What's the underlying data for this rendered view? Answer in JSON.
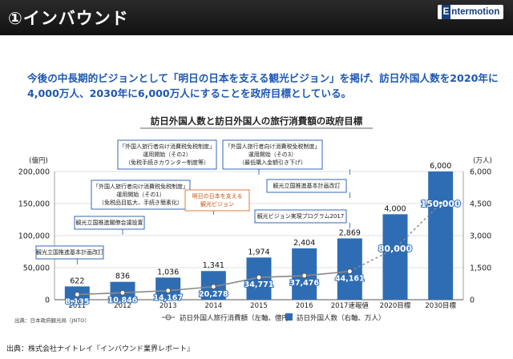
{
  "header": {
    "title": "①インバウンド",
    "logo_first": "E",
    "logo_rest": "ntermotion"
  },
  "headline": "今後の中長期的ビジョンとして「明日の日本を支える観光ビジョン」を掲げ、訪日外国人数を2020年に4,000万人、2030年に6,000万人にすることを政府目標としている。",
  "source": "出典：株式会社ナイトレイ『インバウンド業界レポート』",
  "colors": {
    "bar": "#2e6db4",
    "line": "#8a8a8a",
    "headline": "#1e57b4",
    "callout_border": "#1e57b4",
    "callout_highlight": "#e06a1e"
  },
  "chart_data": {
    "type": "bar",
    "title": "訪日外国人数と訪日外国人の旅行消費額の政府目標",
    "categories": [
      "2011",
      "2012",
      "2013",
      "2014",
      "2015",
      "2016",
      "2017速報値",
      "2020目標",
      "2030目標"
    ],
    "y_left_label": "(億円)",
    "y_right_label": "(万人)",
    "y_left_ticks": [
      "0",
      "50,000",
      "100,000",
      "150,000",
      "200,000"
    ],
    "y_right_ticks": [
      "0",
      "1,500",
      "3,000",
      "4,500",
      "6,000"
    ],
    "y_left_range": [
      0,
      200000
    ],
    "y_right_range": [
      0,
      6000
    ],
    "series": [
      {
        "name": "訪日外国人数（右軸、万人）",
        "axis": "right",
        "kind": "bar",
        "values": [
          622,
          836,
          1036,
          1341,
          1974,
          2404,
          2869,
          4000,
          6000
        ],
        "labels": [
          "622",
          "836",
          "1,036",
          "1,341",
          "1,974",
          "2,404",
          "2,869",
          "4,000",
          "6,000"
        ]
      },
      {
        "name": "訪日外国人旅行消費額（左軸、億円）",
        "axis": "left",
        "kind": "line",
        "values": [
          8135,
          10846,
          14167,
          20278,
          34771,
          37476,
          44161,
          80000,
          150000
        ],
        "labels": [
          "8,135",
          "10,846",
          "14,167",
          "20,278",
          "34,771",
          "37,476",
          "44,161",
          "80,000",
          "150,000"
        ]
      }
    ],
    "annotations": [
      {
        "text": [
          "観光立国推進基本計画改訂"
        ],
        "anchor": "2011"
      },
      {
        "text": [
          "観光立国推進閣僚会議設置"
        ],
        "anchor": "2013"
      },
      {
        "text": [
          "「外国人旅行者向け消費税免税制度」",
          "運用開始（その1）",
          "（免税品目拡大、手続き簡素化）"
        ],
        "anchor": "2014"
      },
      {
        "text": [
          "「外国人旅行者向け消費税免税制度」",
          "運用開始（その2）",
          "（免税手続きカウンター制度等）"
        ],
        "anchor": "2015"
      },
      {
        "text": [
          "明日の日本を支える",
          "観光ビジョン"
        ],
        "anchor": "2016",
        "highlight": true
      },
      {
        "text": [
          "「外国人旅行者向け消費税免税制度」",
          "運用開始（その3）",
          "（最低購入金額引き下げ）"
        ],
        "anchor": "2017速報値"
      },
      {
        "text": [
          "観光ビジョン実現プログラム2017"
        ],
        "anchor": "2017速報値"
      },
      {
        "text": [
          "観光立国推進基本計画改訂"
        ],
        "anchor": "2017速報値"
      }
    ],
    "source_note": "出典：日本政府観光局（JNTO）",
    "legend_position": "bottom",
    "grid": true
  }
}
